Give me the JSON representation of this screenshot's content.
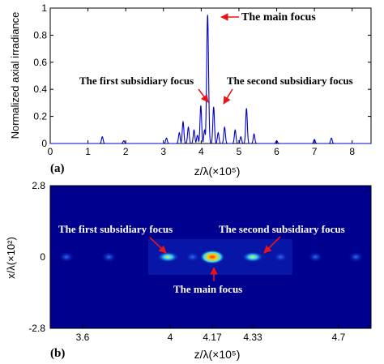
{
  "colors": {
    "line": "#0000cc",
    "arrow": "#e8141a",
    "map_background": "#00008f",
    "axis": "#000000",
    "annotation_on_map": "#ffffff"
  },
  "chart_data": [
    {
      "type": "line",
      "panel_label": "(a)",
      "xlabel": "z/λ(×10⁵)",
      "ylabel": "Normalized axial irradiance",
      "xlim": [
        0,
        8.5
      ],
      "ylim": [
        0,
        1
      ],
      "x_ticks": [
        "0",
        "1",
        "2",
        "3",
        "4",
        "5",
        "6",
        "7",
        "8"
      ],
      "y_ticks": [
        "0",
        "0.2",
        "0.4",
        "0.6",
        "0.8",
        "1"
      ],
      "grid": false,
      "peaks": [
        {
          "x": 1.38,
          "y": 0.05
        },
        {
          "x": 1.95,
          "y": 0.02
        },
        {
          "x": 3.08,
          "y": 0.04
        },
        {
          "x": 3.42,
          "y": 0.08
        },
        {
          "x": 3.52,
          "y": 0.16
        },
        {
          "x": 3.66,
          "y": 0.12
        },
        {
          "x": 3.81,
          "y": 0.1
        },
        {
          "x": 3.9,
          "y": 0.06
        },
        {
          "x": 3.99,
          "y": 0.28
        },
        {
          "x": 4.09,
          "y": 0.1
        },
        {
          "x": 4.17,
          "y": 0.95
        },
        {
          "x": 4.33,
          "y": 0.27
        },
        {
          "x": 4.45,
          "y": 0.08
        },
        {
          "x": 4.62,
          "y": 0.12
        },
        {
          "x": 4.9,
          "y": 0.1
        },
        {
          "x": 5.05,
          "y": 0.05
        },
        {
          "x": 5.2,
          "y": 0.26
        },
        {
          "x": 5.4,
          "y": 0.07
        },
        {
          "x": 6.0,
          "y": 0.02
        },
        {
          "x": 7.0,
          "y": 0.03
        },
        {
          "x": 7.45,
          "y": 0.04
        }
      ],
      "annotations": [
        {
          "text": "The main focus",
          "target": [
            4.17,
            0.95
          ]
        },
        {
          "text": "The first subsidiary focus",
          "target": [
            3.99,
            0.28
          ]
        },
        {
          "text": "The second subsidiary focus",
          "target": [
            4.33,
            0.27
          ]
        }
      ]
    },
    {
      "type": "heatmap",
      "panel_label": "(b)",
      "xlabel": "z/λ(×10⁵)",
      "ylabel": "x/λ(×10²)",
      "xlim": [
        3.5,
        4.85
      ],
      "ylim": [
        -2.8,
        2.8
      ],
      "x_ticks": [
        "3.6",
        "4",
        "4.17",
        "4.33",
        "4.7"
      ],
      "y_ticks": [
        "2.8",
        "0",
        "-2.8"
      ],
      "spots": [
        {
          "z": 3.55,
          "x": 0,
          "intensity": 0.15
        },
        {
          "z": 3.72,
          "x": 0,
          "intensity": 0.15
        },
        {
          "z": 3.99,
          "x": 0,
          "intensity": 0.45
        },
        {
          "z": 4.09,
          "x": 0,
          "intensity": 0.25
        },
        {
          "z": 4.17,
          "x": 0,
          "intensity": 1.0
        },
        {
          "z": 4.33,
          "x": 0,
          "intensity": 0.45
        },
        {
          "z": 4.45,
          "x": 0,
          "intensity": 0.2
        },
        {
          "z": 4.6,
          "x": 0,
          "intensity": 0.2
        },
        {
          "z": 4.78,
          "x": 0,
          "intensity": 0.15
        }
      ],
      "annotations": [
        {
          "text": "The first subsidiary focus",
          "target": [
            3.99,
            0
          ]
        },
        {
          "text": "The second subsidiary focus",
          "target": [
            4.33,
            0
          ]
        },
        {
          "text": "The main focus",
          "target": [
            4.17,
            0
          ]
        }
      ]
    }
  ]
}
